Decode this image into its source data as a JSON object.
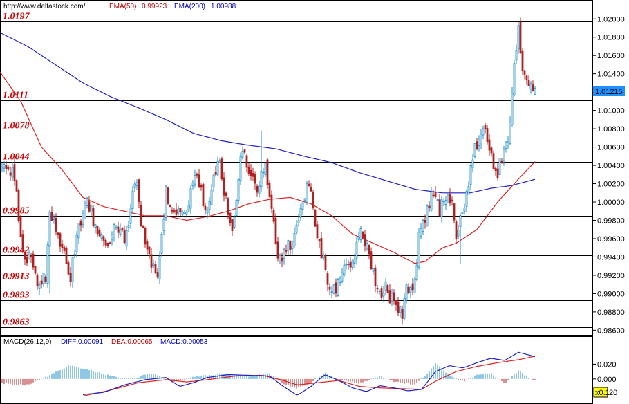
{
  "header": {
    "url": "http://www.deltastock.com/",
    "ema50_label": "EMA(50)",
    "ema50_value": "0.99923",
    "ema200_label": "EMA(200)",
    "ema200_value": "1.00988"
  },
  "macd_header": {
    "label": "MACD(26,12,9)",
    "diff_label": "DIFF:0.00091",
    "dea_label": "DEA:0.00065",
    "macd_label": "MACD:0.00053"
  },
  "price_badge": "1.01215",
  "zoom_badge": "x0.1",
  "macd_axis_fragment": "20",
  "colors": {
    "up_candle": "#1f8fc8",
    "down_candle": "#b02020",
    "ema50": "#e02020",
    "ema200": "#2020c8",
    "level_text": "#d40000",
    "badge_bg": "#1e90ff",
    "zoom_bg": "#ffff00"
  },
  "chart_data": [
    {
      "type": "candlestick",
      "y_axis": {
        "min": 0.9858,
        "max": 1.0207,
        "ticks": [
          "1.02000",
          "1.01800",
          "1.01600",
          "1.01400",
          "1.01200",
          "1.01000",
          "1.00800",
          "1.00600",
          "1.00400",
          "1.00200",
          "1.00000",
          "0.99800",
          "0.99600",
          "0.99400",
          "0.99200",
          "0.99000",
          "0.98800",
          "0.98600"
        ]
      },
      "levels": [
        {
          "label": "1.0197",
          "value": 1.0197
        },
        {
          "label": "1.0111",
          "value": 1.0111
        },
        {
          "label": "1.0078",
          "value": 1.0078
        },
        {
          "label": "1.0044",
          "value": 1.0044
        },
        {
          "label": "0.9985",
          "value": 0.9985
        },
        {
          "label": "0.9942",
          "value": 0.9942
        },
        {
          "label": "0.9913",
          "value": 0.9913
        },
        {
          "label": "0.9893",
          "value": 0.9893
        },
        {
          "label": "0.9863",
          "value": 0.9863
        }
      ],
      "close_anchors": [
        [
          0,
          1.004
        ],
        [
          10,
          1.0035
        ],
        [
          18,
          1.003
        ],
        [
          24,
          1.0005
        ],
        [
          30,
          0.9965
        ],
        [
          36,
          0.9935
        ],
        [
          42,
          0.994
        ],
        [
          48,
          0.993
        ],
        [
          54,
          0.9915
        ],
        [
          60,
          0.991
        ],
        [
          66,
          0.992
        ],
        [
          72,
          0.999
        ],
        [
          78,
          0.9975
        ],
        [
          84,
          0.996
        ],
        [
          90,
          0.9955
        ],
        [
          96,
          0.9935
        ],
        [
          102,
          0.9915
        ],
        [
          108,
          0.995
        ],
        [
          114,
          0.9975
        ],
        [
          120,
          0.999
        ],
        [
          126,
          1.0
        ],
        [
          132,
          0.999
        ],
        [
          138,
          0.9975
        ],
        [
          144,
          0.997
        ],
        [
          150,
          0.996
        ],
        [
          156,
          0.9955
        ],
        [
          162,
          0.997
        ],
        [
          168,
          0.998
        ],
        [
          174,
          0.9965
        ],
        [
          180,
          0.996
        ],
        [
          186,
          0.997
        ],
        [
          192,
          1.001
        ],
        [
          198,
          1.002
        ],
        [
          204,
          0.998
        ],
        [
          210,
          0.996
        ],
        [
          216,
          0.9945
        ],
        [
          222,
          0.9925
        ],
        [
          228,
          0.9918
        ],
        [
          234,
          0.996
        ],
        [
          240,
          1.001
        ],
        [
          246,
          1.0
        ],
        [
          252,
          0.999
        ],
        [
          258,
          0.9985
        ],
        [
          264,
          0.9995
        ],
        [
          270,
          0.999
        ],
        [
          276,
          1.001
        ],
        [
          282,
          1.003
        ],
        [
          288,
          1.002
        ],
        [
          294,
          1.0
        ],
        [
          300,
          0.999
        ],
        [
          306,
          1.001
        ],
        [
          312,
          1.0035
        ],
        [
          318,
          1.004
        ],
        [
          324,
          1.001
        ],
        [
          330,
          0.999
        ],
        [
          336,
          0.9975
        ],
        [
          342,
          1.0005
        ],
        [
          348,
          1.0055
        ],
        [
          354,
          1.005
        ],
        [
          360,
          1.0035
        ],
        [
          366,
          1.002
        ],
        [
          372,
          1.001
        ],
        [
          378,
          1.003
        ],
        [
          384,
          1.004
        ],
        [
          390,
          1.001
        ],
        [
          396,
          0.9975
        ],
        [
          402,
          0.9935
        ],
        [
          408,
          0.9938
        ],
        [
          414,
          0.995
        ],
        [
          420,
          0.9955
        ],
        [
          426,
          0.996
        ],
        [
          432,
          0.9975
        ],
        [
          438,
          0.9995
        ],
        [
          444,
          1.0025
        ],
        [
          450,
          1.001
        ],
        [
          456,
          0.9975
        ],
        [
          462,
          0.9955
        ],
        [
          468,
          0.9935
        ],
        [
          474,
          0.9915
        ],
        [
          480,
          0.99
        ],
        [
          486,
          0.9905
        ],
        [
          492,
          0.992
        ],
        [
          498,
          0.9928
        ],
        [
          504,
          0.9925
        ],
        [
          510,
          0.993
        ],
        [
          516,
          0.995
        ],
        [
          522,
          0.9965
        ],
        [
          528,
          0.996
        ],
        [
          534,
          0.9945
        ],
        [
          540,
          0.9925
        ],
        [
          546,
          0.9905
        ],
        [
          552,
          0.99
        ],
        [
          558,
          0.9905
        ],
        [
          564,
          0.9895
        ],
        [
          570,
          0.989
        ],
        [
          576,
          0.9885
        ],
        [
          582,
          0.988
        ],
        [
          588,
          0.9905
        ],
        [
          594,
          0.9905
        ],
        [
          600,
          0.991
        ],
        [
          606,
          0.996
        ],
        [
          612,
          0.9975
        ],
        [
          618,
          0.999
        ],
        [
          624,
          1.0005
        ],
        [
          630,
          1.0
        ],
        [
          636,
          0.999
        ],
        [
          642,
          1.0
        ],
        [
          648,
          1.0005
        ],
        [
          654,
          0.9995
        ],
        [
          660,
          0.9965
        ],
        [
          666,
          0.998
        ],
        [
          672,
          1.0
        ],
        [
          678,
          1.002
        ],
        [
          684,
          1.005
        ],
        [
          690,
          1.0065
        ],
        [
          696,
          1.007
        ],
        [
          702,
          1.008
        ],
        [
          708,
          1.0055
        ],
        [
          714,
          1.004
        ],
        [
          720,
          1.003
        ],
        [
          726,
          1.005
        ],
        [
          732,
          1.0065
        ],
        [
          738,
          1.008
        ],
        [
          744,
          1.0145
        ],
        [
          750,
          1.0185
        ],
        [
          756,
          1.014
        ],
        [
          762,
          1.014
        ],
        [
          768,
          1.0125
        ],
        [
          774,
          1.0121
        ]
      ],
      "ema50_anchors": [
        [
          0,
          1.0142
        ],
        [
          30,
          1.011
        ],
        [
          60,
          1.006
        ],
        [
          90,
          1.0035
        ],
        [
          120,
          1.0005
        ],
        [
          150,
          0.9995
        ],
        [
          180,
          0.999
        ],
        [
          210,
          0.9985
        ],
        [
          240,
          0.9985
        ],
        [
          270,
          0.998
        ],
        [
          300,
          0.9984
        ],
        [
          330,
          0.999
        ],
        [
          360,
          0.9998
        ],
        [
          390,
          1.0003
        ],
        [
          420,
          1.0005
        ],
        [
          450,
          0.9998
        ],
        [
          480,
          0.9985
        ],
        [
          510,
          0.9965
        ],
        [
          540,
          0.9955
        ],
        [
          570,
          0.9945
        ],
        [
          600,
          0.9933
        ],
        [
          615,
          0.9935
        ],
        [
          640,
          0.995
        ],
        [
          660,
          0.9955
        ],
        [
          690,
          0.997
        ],
        [
          720,
          1.0
        ],
        [
          750,
          1.0025
        ],
        [
          775,
          1.0045
        ]
      ],
      "ema200_anchors": [
        [
          0,
          1.0185
        ],
        [
          40,
          1.017
        ],
        [
          80,
          1.015
        ],
        [
          120,
          1.013
        ],
        [
          160,
          1.0115
        ],
        [
          200,
          1.0103
        ],
        [
          240,
          1.009
        ],
        [
          280,
          1.0075
        ],
        [
          320,
          1.0067
        ],
        [
          360,
          1.0062
        ],
        [
          400,
          1.0058
        ],
        [
          440,
          1.005
        ],
        [
          480,
          1.0043
        ],
        [
          520,
          1.0032
        ],
        [
          560,
          1.0023
        ],
        [
          600,
          1.0014
        ],
        [
          640,
          1.001
        ],
        [
          680,
          1.001
        ],
        [
          710,
          1.0015
        ],
        [
          740,
          1.0018
        ],
        [
          775,
          1.0025
        ]
      ]
    },
    {
      "type": "macd",
      "y_axis": {
        "ticks": [
          "0.020",
          "0.000"
        ]
      },
      "diff_anchors": [
        [
          120,
          -0.021
        ],
        [
          150,
          -0.018
        ],
        [
          180,
          -0.008
        ],
        [
          210,
          -0.001
        ],
        [
          240,
          0.002
        ],
        [
          260,
          -0.01
        ],
        [
          280,
          -0.005
        ],
        [
          300,
          0.002
        ],
        [
          330,
          0.006
        ],
        [
          360,
          0.005
        ],
        [
          390,
          0.004
        ],
        [
          410,
          -0.01
        ],
        [
          430,
          -0.022
        ],
        [
          450,
          -0.01
        ],
        [
          470,
          0.006
        ],
        [
          490,
          -0.002
        ],
        [
          510,
          -0.012
        ],
        [
          530,
          -0.017
        ],
        [
          550,
          -0.009
        ],
        [
          570,
          -0.012
        ],
        [
          590,
          -0.016
        ],
        [
          610,
          -0.014
        ],
        [
          630,
          0.01
        ],
        [
          650,
          0.018
        ],
        [
          670,
          0.015
        ],
        [
          690,
          0.022
        ],
        [
          710,
          0.028
        ],
        [
          730,
          0.025
        ],
        [
          750,
          0.036
        ],
        [
          775,
          0.03
        ]
      ],
      "dea_anchors": [
        [
          120,
          -0.023
        ],
        [
          160,
          -0.015
        ],
        [
          200,
          -0.005
        ],
        [
          240,
          -0.001
        ],
        [
          270,
          -0.004
        ],
        [
          300,
          -0.001
        ],
        [
          340,
          0.004
        ],
        [
          380,
          0.005
        ],
        [
          410,
          -0.002
        ],
        [
          430,
          -0.008
        ],
        [
          460,
          -0.005
        ],
        [
          490,
          -0.002
        ],
        [
          520,
          -0.01
        ],
        [
          550,
          -0.012
        ],
        [
          580,
          -0.013
        ],
        [
          610,
          -0.014
        ],
        [
          630,
          -0.003
        ],
        [
          660,
          0.01
        ],
        [
          690,
          0.017
        ],
        [
          720,
          0.022
        ],
        [
          750,
          0.026
        ],
        [
          775,
          0.031
        ]
      ],
      "hist_anchors": [
        [
          0,
          -0.006
        ],
        [
          40,
          -0.008
        ],
        [
          70,
          0.004
        ],
        [
          100,
          0.018
        ],
        [
          130,
          0.012
        ],
        [
          160,
          0.004
        ],
        [
          190,
          0.0
        ],
        [
          220,
          0.008
        ],
        [
          250,
          -0.004
        ],
        [
          280,
          0.003
        ],
        [
          320,
          0.007
        ],
        [
          360,
          0.003
        ],
        [
          390,
          0.008
        ],
        [
          410,
          -0.007
        ],
        [
          430,
          -0.013
        ],
        [
          450,
          -0.004
        ],
        [
          470,
          0.008
        ],
        [
          490,
          -0.001
        ],
        [
          520,
          -0.006
        ],
        [
          550,
          0.004
        ],
        [
          570,
          -0.004
        ],
        [
          600,
          -0.007
        ],
        [
          615,
          0.004
        ],
        [
          630,
          0.022
        ],
        [
          650,
          0.004
        ],
        [
          670,
          -0.003
        ],
        [
          690,
          0.005
        ],
        [
          710,
          0.008
        ],
        [
          730,
          -0.006
        ],
        [
          750,
          0.011
        ],
        [
          775,
          -0.003
        ]
      ]
    }
  ]
}
